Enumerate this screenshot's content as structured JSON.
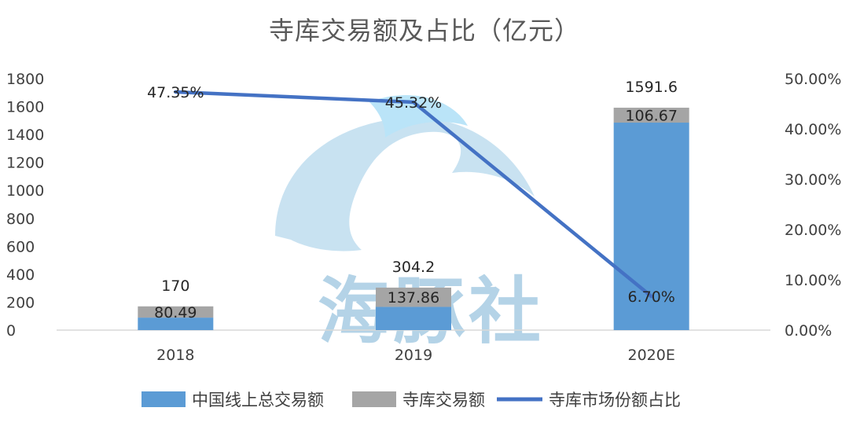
{
  "chart_data": {
    "type": "bar",
    "title": "寺库交易额及占比（亿元）",
    "categories": [
      "2018",
      "2019",
      "2020E"
    ],
    "series": [
      {
        "name": "中国线上总交易额",
        "kind": "bar",
        "stack": "main",
        "color": "#5B9BD5",
        "values": [
          89.51,
          166.34,
          1484.93
        ],
        "labels": [
          "",
          "",
          ""
        ]
      },
      {
        "name": "寺库交易额",
        "kind": "bar",
        "stack": "main",
        "color": "#A5A5A5",
        "values": [
          80.49,
          137.86,
          106.67
        ],
        "labels": [
          "80.49",
          "137.86",
          "106.67"
        ]
      },
      {
        "name": "寺库市场份额占比",
        "kind": "line",
        "axis": "right",
        "color": "#4472C4",
        "values": [
          0.4735,
          0.4532,
          0.067
        ],
        "labels": [
          "47.35%",
          "45.32%",
          "6.70%"
        ]
      }
    ],
    "total_labels": [
      "170",
      "304.2",
      "1591.6"
    ],
    "y_left": {
      "range": [
        0,
        1800
      ],
      "ticks": [
        "0",
        "200",
        "400",
        "600",
        "800",
        "1000",
        "1200",
        "1400",
        "1600",
        "1800"
      ]
    },
    "y_right": {
      "range": [
        0,
        0.5
      ],
      "ticks": [
        "0.00%",
        "10.00%",
        "20.00%",
        "30.00%",
        "40.00%",
        "50.00%"
      ]
    },
    "legend_position": "bottom",
    "grid": false,
    "watermark_text": "海豚社"
  }
}
